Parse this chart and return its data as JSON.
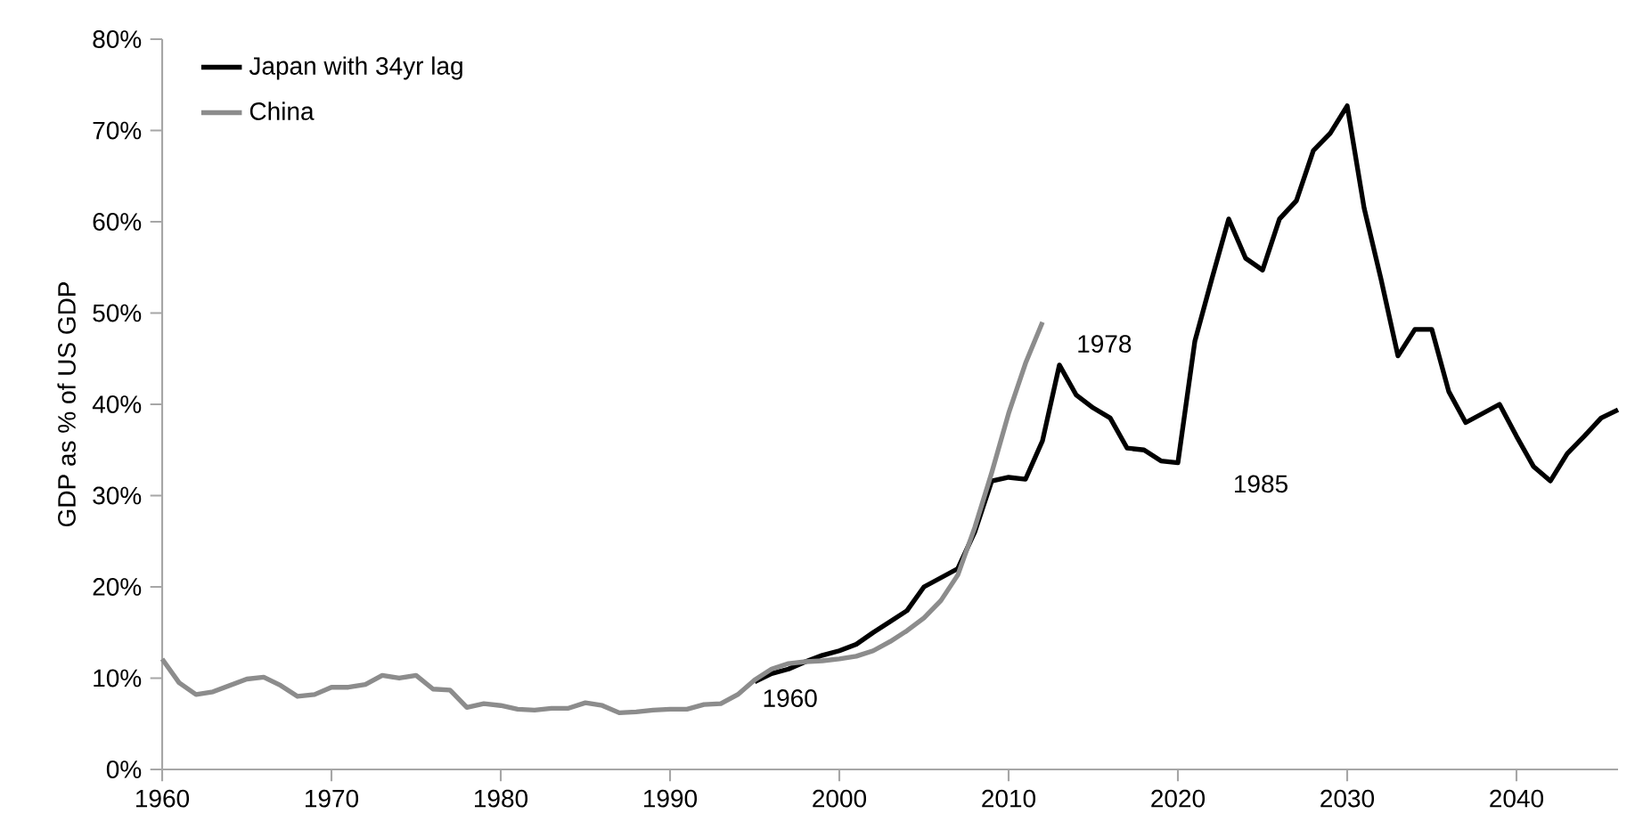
{
  "chart_data": {
    "type": "line",
    "ylabel": "GDP as % of US GDP",
    "legend": "top left",
    "grid": false,
    "line_style": "solid",
    "xlim": [
      1960,
      2046
    ],
    "xticks": [
      1960,
      1970,
      1980,
      1990,
      2000,
      2010,
      2020,
      2030,
      2040
    ],
    "ylim": [
      0,
      80
    ],
    "yticks": [
      {
        "value": 0,
        "label": "0%"
      },
      {
        "value": 10,
        "label": "10%"
      },
      {
        "value": 20,
        "label": "20%"
      },
      {
        "value": 30,
        "label": "30%"
      },
      {
        "value": 40,
        "label": "40%"
      },
      {
        "value": 50,
        "label": "50%"
      },
      {
        "value": 60,
        "label": "60%"
      },
      {
        "value": 70,
        "label": "70%"
      },
      {
        "value": 80,
        "label": "80%"
      }
    ],
    "series": [
      {
        "name": "Japan with 34yr lag",
        "color": "#000000",
        "x": [
          1995,
          1996,
          1997,
          1998,
          1999,
          2000,
          2001,
          2002,
          2003,
          2004,
          2005,
          2006,
          2007,
          2008,
          2009,
          2010,
          2011,
          2012,
          2013,
          2014,
          2015,
          2016,
          2017,
          2018,
          2019,
          2020,
          2021,
          2022,
          2023,
          2024,
          2025,
          2026,
          2027,
          2028,
          2029,
          2030,
          2031,
          2032,
          2033,
          2034,
          2035,
          2036,
          2037,
          2038,
          2039,
          2040,
          2041,
          2042,
          2043,
          2044,
          2045,
          2046
        ],
        "values": [
          9.6,
          10.5,
          11,
          11.8,
          12.5,
          13,
          13.7,
          15,
          16.2,
          17.4,
          20,
          21,
          22,
          26,
          31.6,
          32,
          31.8,
          36,
          44.3,
          41,
          39.6,
          38.5,
          35.2,
          35,
          33.8,
          33.6,
          46.9,
          53.7,
          60.3,
          56,
          54.7,
          60.3,
          62.3,
          67.8,
          69.7,
          72.7,
          61.5,
          53.7,
          45.3,
          48.2,
          48.2,
          41.4,
          38,
          39,
          40,
          36.5,
          33.2,
          31.6,
          34.6,
          36.5,
          38.5,
          39.4
        ]
      },
      {
        "name": "China",
        "color": "#8c8c8c",
        "x": [
          1960,
          1961,
          1962,
          1963,
          1964,
          1965,
          1966,
          1967,
          1968,
          1969,
          1970,
          1971,
          1972,
          1973,
          1974,
          1975,
          1976,
          1977,
          1978,
          1979,
          1980,
          1981,
          1982,
          1983,
          1984,
          1985,
          1986,
          1987,
          1988,
          1989,
          1990,
          1991,
          1992,
          1993,
          1994,
          1995,
          1996,
          1997,
          1998,
          1999,
          2000,
          2001,
          2002,
          2003,
          2004,
          2005,
          2006,
          2007,
          2008,
          2009,
          2010,
          2011,
          2012
        ],
        "values": [
          12.1,
          9.5,
          8.2,
          8.5,
          9.2,
          9.9,
          10.1,
          9.2,
          8,
          8.2,
          9,
          9,
          9.3,
          10.3,
          10,
          10.3,
          8.8,
          8.7,
          6.8,
          7.2,
          7,
          6.6,
          6.5,
          6.7,
          6.7,
          7.3,
          7,
          6.2,
          6.3,
          6.5,
          6.6,
          6.6,
          7.1,
          7.2,
          8.2,
          9.8,
          11,
          11.6,
          11.8,
          11.9,
          12.1,
          12.4,
          13,
          14,
          15.2,
          16.6,
          18.5,
          21.3,
          26.5,
          32.5,
          39,
          44.5,
          49
        ]
      }
    ],
    "annotations": [
      {
        "text": "1960",
        "x": 1995,
        "y": 9.6
      },
      {
        "text": "1978",
        "x": 2013,
        "y": 44.3
      },
      {
        "text": "1985",
        "x": 2020,
        "y": 33.6
      }
    ]
  }
}
